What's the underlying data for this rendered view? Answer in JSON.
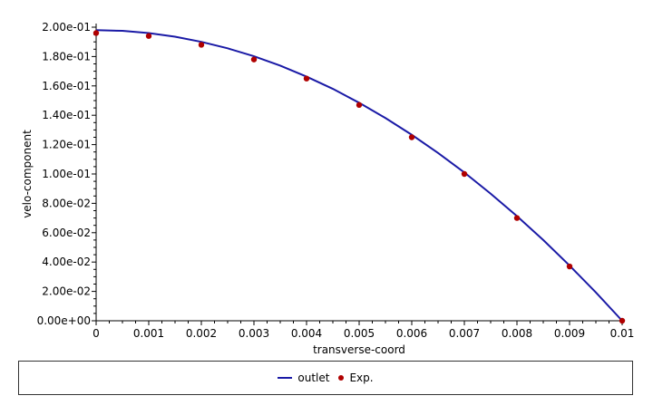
{
  "chart_data": {
    "type": "line",
    "xlabel": "transverse-coord",
    "ylabel": "velo-component",
    "xlim": [
      0,
      0.01
    ],
    "ylim": [
      0,
      0.2
    ],
    "x_ticks": [
      "0",
      "0.001",
      "0.002",
      "0.003",
      "0.004",
      "0.005",
      "0.006",
      "0.007",
      "0.008",
      "0.009",
      "0.01"
    ],
    "y_ticks": [
      "0.00e+00",
      "2.00e-02",
      "4.00e-02",
      "6.00e-02",
      "8.00e-02",
      "1.00e-01",
      "1.20e-01",
      "1.40e-01",
      "1.60e-01",
      "1.80e-01",
      "2.00e-01"
    ],
    "grid": false,
    "legend_position": "bottom",
    "series": [
      {
        "name": "outlet",
        "style": "line",
        "color": "#1a1aa6",
        "x": [
          0,
          0.0005,
          0.001,
          0.0015,
          0.002,
          0.0025,
          0.003,
          0.0035,
          0.004,
          0.0045,
          0.005,
          0.0055,
          0.006,
          0.0065,
          0.007,
          0.0075,
          0.008,
          0.0085,
          0.009,
          0.0095,
          0.01
        ],
        "y": [
          0.198,
          0.1975,
          0.196,
          0.1935,
          0.19,
          0.1856,
          0.1802,
          0.1738,
          0.1663,
          0.158,
          0.1485,
          0.1381,
          0.1267,
          0.1143,
          0.101,
          0.0866,
          0.0713,
          0.055,
          0.0376,
          0.0193,
          0.0
        ]
      },
      {
        "name": "Exp.",
        "style": "points",
        "color": "#b00000",
        "x": [
          0,
          0.001,
          0.002,
          0.003,
          0.004,
          0.005,
          0.006,
          0.007,
          0.008,
          0.009,
          0.01
        ],
        "y": [
          0.196,
          0.194,
          0.188,
          0.178,
          0.165,
          0.147,
          0.125,
          0.1,
          0.07,
          0.037,
          0.0
        ]
      }
    ]
  }
}
